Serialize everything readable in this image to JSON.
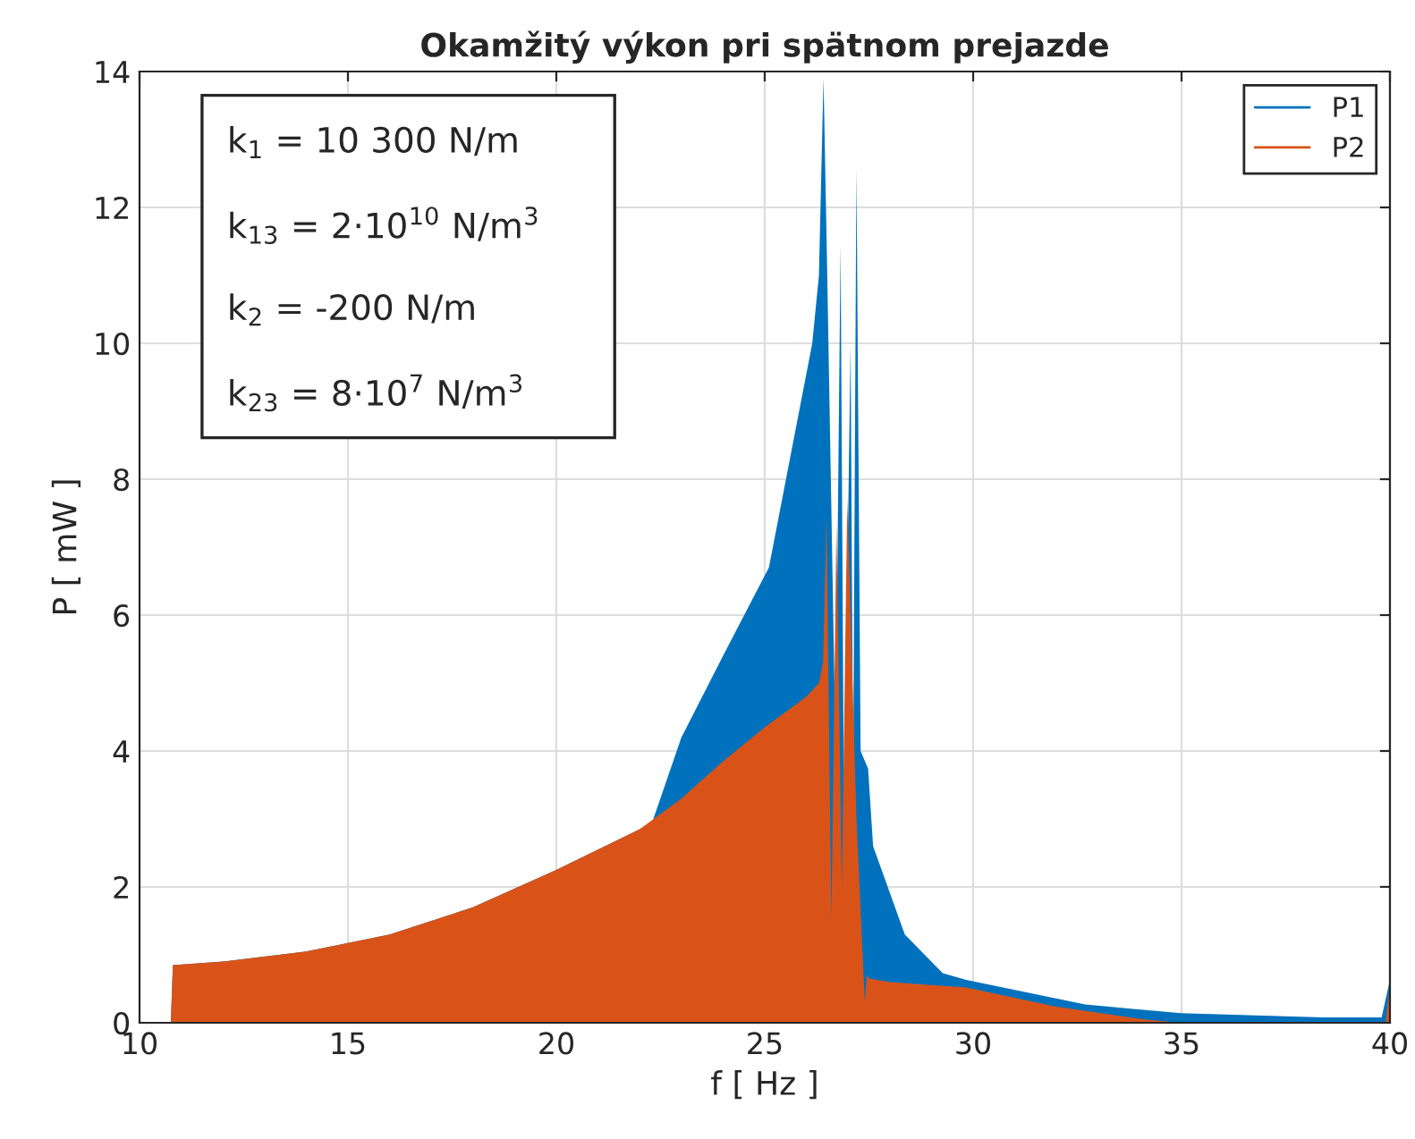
{
  "chart_data": {
    "type": "area",
    "title": "Okamžitý výkon pri spätnom prejazde",
    "xlabel": "f [ Hz ]",
    "ylabel": "P [ mW ]",
    "xlim": [
      10,
      40
    ],
    "xticks": [
      10,
      15,
      20,
      25,
      30,
      35,
      40
    ],
    "ylim": [
      0,
      14
    ],
    "yticks": [
      0,
      2,
      4,
      6,
      8,
      10,
      12,
      14
    ],
    "grid": true,
    "legend": "top right",
    "marker": "none",
    "line_style": "solid",
    "annotations": [
      "k$_{1}$ = 10 300 N/m",
      "k$_{13}$ = 2·10$^{10}$ N/m$^{3}$",
      "k$_{2}$ = -200 N/m",
      "k$_{23}$ = 8·10$^{7}$ N/m$^{3}$"
    ],
    "series": [
      {
        "name": "P1",
        "color": "#0072bd",
        "x": [
          10,
          10.75,
          10.8,
          12,
          14,
          16,
          18,
          20,
          21,
          22,
          22.3,
          23,
          24,
          25.1,
          26.14,
          26.3,
          26.41,
          26.5,
          26.6,
          26.7,
          26.82,
          26.9,
          27.06,
          27.12,
          27.2,
          27.3,
          27.45,
          27.48,
          27.6,
          28.36,
          29.27,
          29.83,
          32.69,
          34.98,
          38.4,
          39.8,
          40
        ],
        "values": [
          0,
          0,
          0.85,
          0.9,
          1.05,
          1.3,
          1.7,
          2.25,
          2.55,
          2.85,
          2.95,
          4.2,
          5.4,
          6.7,
          10.0,
          11.0,
          13.9,
          11.0,
          null,
          4.0,
          11.45,
          3.0,
          10.0,
          3.5,
          12.6,
          4.0,
          null,
          3.74,
          2.6,
          1.3,
          0.73,
          0.63,
          0.27,
          0.14,
          0.08,
          0.08,
          0.63
        ]
      },
      {
        "name": "P2",
        "color": "#d95319",
        "x": [
          10,
          10.75,
          10.8,
          12,
          14,
          16,
          18,
          20,
          21,
          22,
          23,
          24,
          25,
          26,
          26.3,
          26.4,
          26.48,
          26.6,
          26.72,
          26.85,
          26.98,
          27.2,
          27.4,
          27.45,
          27.5,
          28,
          29.83,
          31.97,
          34.1,
          35,
          39.9,
          40
        ],
        "values": [
          0,
          0,
          0.85,
          0.9,
          1.05,
          1.3,
          1.7,
          2.25,
          2.55,
          2.85,
          3.3,
          3.85,
          4.35,
          4.8,
          5.0,
          5.3,
          7.45,
          1.5,
          7.35,
          2.0,
          7.7,
          3.0,
          0.3,
          0.7,
          0.65,
          0.6,
          0.52,
          0.24,
          0.05,
          0.0,
          0.0,
          0.6
        ]
      }
    ]
  }
}
